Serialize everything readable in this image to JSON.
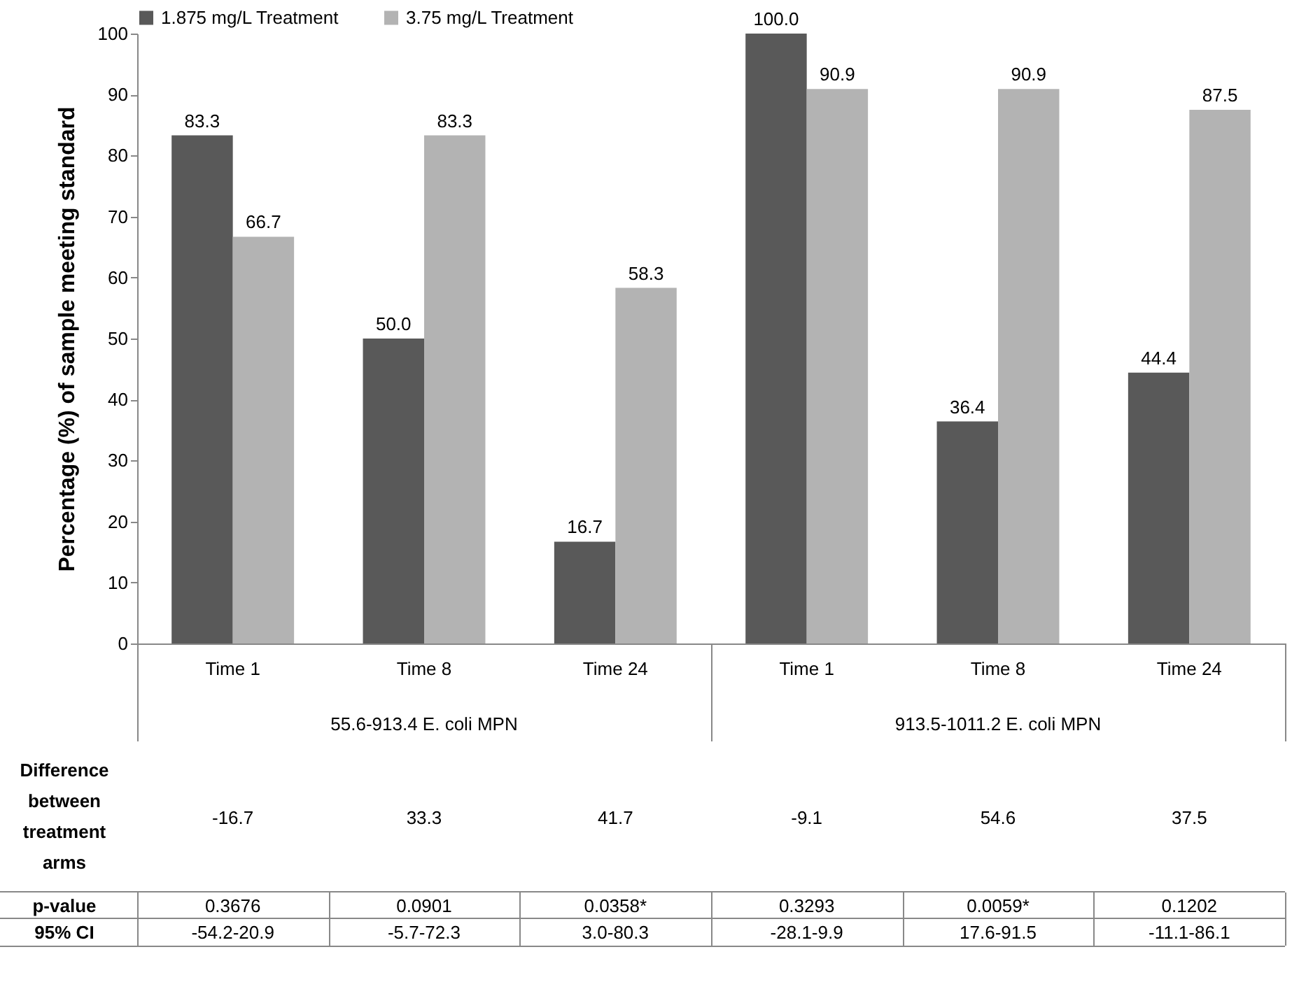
{
  "chart_data": {
    "type": "bar",
    "ylabel": "Percentage (%) of sample meeting standard",
    "categories": [
      "Time 1",
      "Time 8",
      "Time 24",
      "Time 1",
      "Time 8",
      "Time 24"
    ],
    "series": [
      {
        "name": "1.875 mg/L Treatment",
        "color": "#595959",
        "values": [
          83.3,
          50.0,
          16.7,
          100.0,
          36.4,
          44.4
        ],
        "value_labels": [
          "83.3",
          "50.0",
          "16.7",
          "100.0",
          "36.4",
          "44.4"
        ]
      },
      {
        "name": "3.75 mg/L Treatment",
        "color": "#b3b3b3",
        "values": [
          66.7,
          83.3,
          58.3,
          90.9,
          90.9,
          87.5
        ],
        "value_labels": [
          "66.7",
          "83.3",
          "58.3",
          "90.9",
          "90.9",
          "87.5"
        ]
      }
    ],
    "ylim": [
      0,
      100
    ],
    "yticks": [
      0,
      10,
      20,
      30,
      40,
      50,
      60,
      70,
      80,
      90,
      100
    ],
    "grid": false,
    "legend": "top",
    "annotations": [
      "55.6-913.4 E. coli MPN",
      "913.5-1011.2 E. coli MPN",
      "Difference between treatment arms",
      "-16.7",
      "33.3",
      "41.7",
      "-9.1",
      "54.6",
      "37.5",
      "p-value",
      "0.3676",
      "0.0901",
      "0.0358*",
      "0.3293",
      "0.0059*",
      "0.1202",
      "95% CI",
      "-54.2-20.9",
      "-5.7-72.3",
      "3.0-80.3",
      "-28.1-9.9",
      "17.6-91.5",
      "-11.1-86.1"
    ]
  }
}
